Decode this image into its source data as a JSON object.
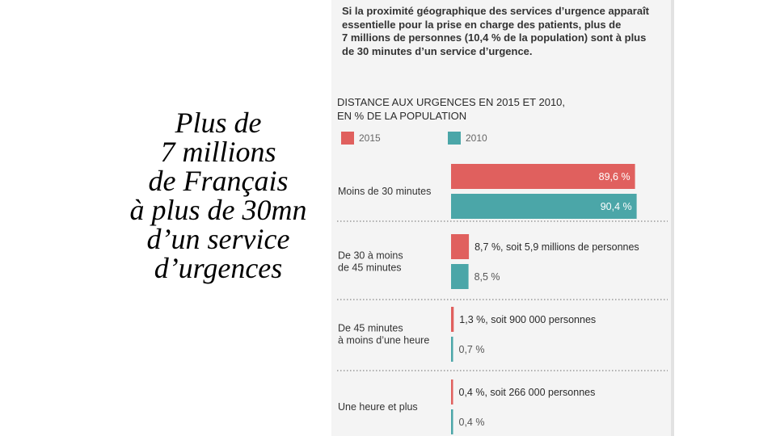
{
  "slide_title": [
    "Plus de",
    "7 millions",
    "de Français",
    "à plus de 30mn",
    "d’un service",
    "d’urgences"
  ],
  "intro": [
    "Si la proximité géographique des services d’urgence apparaît",
    "essentielle pour la prise en charge des patients, plus de",
    "7 millions de personnes (10,4 % de la population) sont à plus",
    "de 30 minutes d’un service d’urgence."
  ],
  "colors": {
    "s2015": "#e0605e",
    "s2010": "#4ba6a8"
  },
  "chart_data": {
    "type": "bar",
    "orientation": "horizontal",
    "title": [
      "DISTANCE AUX URGENCES EN 2015 ET 2010,",
      "EN % DE LA POPULATION"
    ],
    "xlim": [
      0,
      100
    ],
    "categories": [
      [
        "Moins de 30 minutes"
      ],
      [
        "De 30 à moins",
        "de 45 minutes"
      ],
      [
        "De 45 minutes",
        "à moins d’une heure"
      ],
      [
        "Une heure et plus"
      ]
    ],
    "series": [
      {
        "name": "2015",
        "values": [
          89.6,
          8.7,
          1.3,
          0.4
        ],
        "labels": [
          "89,6 %",
          "8,7 %, soit 5,9 millions de personnes",
          "1,3 %, soit 900 000 personnes",
          "0,4 %, soit 266 000 personnes"
        ]
      },
      {
        "name": "2010",
        "values": [
          90.4,
          8.5,
          0.7,
          0.4
        ],
        "labels": [
          "90,4 %",
          "8,5 %",
          "0,7 %",
          "0,4 %"
        ]
      }
    ]
  }
}
